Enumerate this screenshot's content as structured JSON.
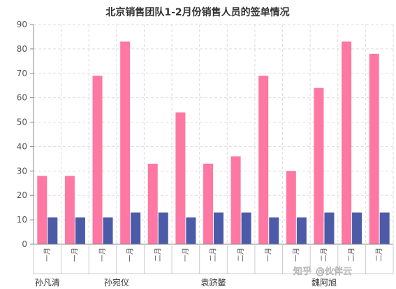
{
  "chart_data": {
    "type": "bar",
    "title": "北京销售团队1-2月份销售人员的签单情况",
    "ylim": [
      0,
      90
    ],
    "y_ticks": [
      0,
      10,
      20,
      30,
      40,
      50,
      60,
      70,
      80,
      90
    ],
    "grid": true,
    "categories": [
      "一月",
      "一月",
      "一月",
      "一月",
      "二月",
      "一月",
      "二月",
      "二月",
      "一月",
      "一月",
      "二月",
      "二月",
      "二月"
    ],
    "groups": [
      {
        "label": "孙凡清",
        "count": 1
      },
      {
        "label": "孙宛仪",
        "count": 4
      },
      {
        "label": "袁跻鳌",
        "count": 3
      },
      {
        "label": "魏阿旭",
        "count": 5
      }
    ],
    "series": [
      {
        "values": [
          28,
          28,
          69,
          83,
          33,
          54,
          33,
          36,
          69,
          30,
          64,
          83,
          78
        ],
        "color": "#ff77a3"
      },
      {
        "values": [
          11,
          11,
          11,
          13,
          13,
          11,
          13,
          13,
          11,
          11,
          13,
          13,
          13
        ],
        "color": "#4b5ba8"
      }
    ]
  },
  "watermark": {
    "site": "知乎",
    "handle": "@伙伴云"
  }
}
